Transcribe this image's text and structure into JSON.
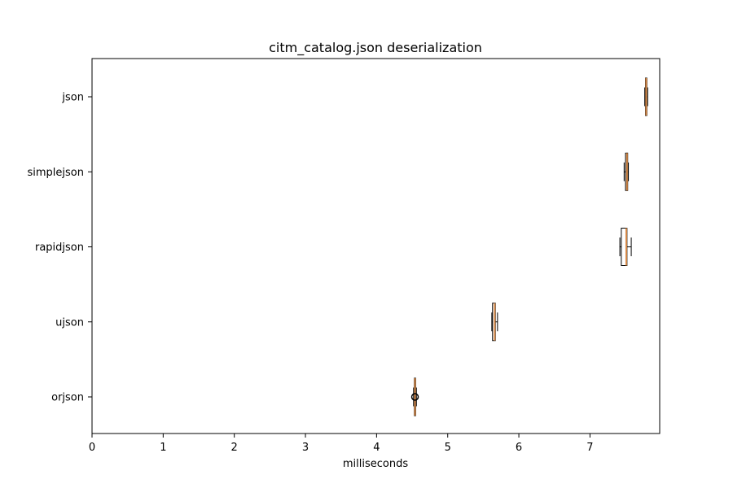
{
  "chart_data": {
    "type": "boxplot",
    "orientation": "horizontal",
    "title": "citm_catalog.json deserialization",
    "xlabel": "milliseconds",
    "ylabel": "",
    "xlim": [
      0,
      7.98
    ],
    "xticks": [
      0,
      1,
      2,
      3,
      4,
      5,
      6,
      7
    ],
    "grid": false,
    "series": [
      {
        "category": "json",
        "whisker_low": 7.77,
        "q1": 7.78,
        "median": 7.79,
        "q3": 7.8,
        "whisker_high": 7.81,
        "fliers": []
      },
      {
        "category": "simplejson",
        "whisker_low": 7.48,
        "q1": 7.5,
        "median": 7.52,
        "q3": 7.53,
        "whisker_high": 7.54,
        "fliers": []
      },
      {
        "category": "rapidjson",
        "whisker_low": 7.42,
        "q1": 7.44,
        "median": 7.51,
        "q3": 7.52,
        "whisker_high": 7.58,
        "fliers": []
      },
      {
        "category": "ujson",
        "whisker_low": 5.62,
        "q1": 5.63,
        "median": 5.66,
        "q3": 5.67,
        "whisker_high": 5.7,
        "fliers": []
      },
      {
        "category": "orjson",
        "whisker_low": 4.52,
        "q1": 4.53,
        "median": 4.54,
        "q3": 4.55,
        "whisker_high": 4.56,
        "fliers": [
          4.54
        ]
      }
    ],
    "colors": {
      "box": "#000000",
      "median": "#d98c4a",
      "spine": "#000000"
    }
  }
}
